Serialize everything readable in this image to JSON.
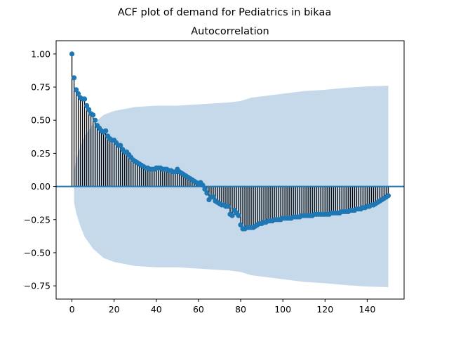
{
  "chart_data": {
    "type": "stem",
    "suptitle": "ACF plot of demand for Pediatrics in bikaa",
    "title": "Autocorrelation",
    "xlabel": "",
    "ylabel": "",
    "xlim": [
      -7.5,
      157.5
    ],
    "ylim": [
      -0.85,
      1.1
    ],
    "xticks": [
      0,
      20,
      40,
      60,
      80,
      100,
      120,
      140
    ],
    "xtick_labels": [
      "0",
      "20",
      "40",
      "60",
      "80",
      "100",
      "120",
      "140"
    ],
    "yticks": [
      -0.75,
      -0.5,
      -0.25,
      0.0,
      0.25,
      0.5,
      0.75,
      1.0
    ],
    "ytick_labels": [
      "−0.75",
      "−0.50",
      "−0.25",
      "0.00",
      "0.25",
      "0.50",
      "0.75",
      "1.00"
    ],
    "colors": {
      "marker": "#1f77b4",
      "stem": "#000000",
      "band": "#c5d9ea",
      "baseline": "#1f77b4"
    },
    "lags": [
      0,
      1,
      2,
      3,
      4,
      5,
      6,
      7,
      8,
      9,
      10,
      11,
      12,
      13,
      14,
      15,
      16,
      17,
      18,
      19,
      20,
      21,
      22,
      23,
      24,
      25,
      26,
      27,
      28,
      29,
      30,
      31,
      32,
      33,
      34,
      35,
      36,
      37,
      38,
      39,
      40,
      41,
      42,
      43,
      44,
      45,
      46,
      47,
      48,
      49,
      50,
      51,
      52,
      53,
      54,
      55,
      56,
      57,
      58,
      59,
      60,
      61,
      62,
      63,
      64,
      65,
      66,
      67,
      68,
      69,
      70,
      71,
      72,
      73,
      74,
      75,
      76,
      77,
      78,
      79,
      80,
      81,
      82,
      83,
      84,
      85,
      86,
      87,
      88,
      89,
      90,
      91,
      92,
      93,
      94,
      95,
      96,
      97,
      98,
      99,
      100,
      101,
      102,
      103,
      104,
      105,
      106,
      107,
      108,
      109,
      110,
      111,
      112,
      113,
      114,
      115,
      116,
      117,
      118,
      119,
      120,
      121,
      122,
      123,
      124,
      125,
      126,
      127,
      128,
      129,
      130,
      131,
      132,
      133,
      134,
      135,
      136,
      137,
      138,
      139,
      140,
      141,
      142,
      143,
      144,
      145,
      146,
      147,
      148,
      149,
      150
    ],
    "acf": [
      1.0,
      0.82,
      0.73,
      0.7,
      0.67,
      0.66,
      0.66,
      0.61,
      0.58,
      0.55,
      0.54,
      0.5,
      0.46,
      0.44,
      0.42,
      0.41,
      0.42,
      0.38,
      0.36,
      0.35,
      0.35,
      0.33,
      0.31,
      0.31,
      0.28,
      0.26,
      0.26,
      0.24,
      0.22,
      0.2,
      0.19,
      0.18,
      0.17,
      0.16,
      0.15,
      0.14,
      0.14,
      0.13,
      0.13,
      0.13,
      0.14,
      0.14,
      0.14,
      0.13,
      0.13,
      0.13,
      0.12,
      0.12,
      0.11,
      0.11,
      0.13,
      0.11,
      0.1,
      0.09,
      0.08,
      0.07,
      0.06,
      0.05,
      0.04,
      0.03,
      0.02,
      0.03,
      0.01,
      -0.02,
      -0.05,
      -0.1,
      -0.08,
      -0.08,
      -0.11,
      -0.12,
      -0.13,
      -0.14,
      -0.14,
      -0.15,
      -0.15,
      -0.21,
      -0.22,
      -0.18,
      -0.2,
      -0.22,
      -0.29,
      -0.32,
      -0.32,
      -0.31,
      -0.31,
      -0.31,
      -0.31,
      -0.3,
      -0.29,
      -0.28,
      -0.28,
      -0.27,
      -0.27,
      -0.26,
      -0.26,
      -0.26,
      -0.25,
      -0.25,
      -0.25,
      -0.25,
      -0.24,
      -0.24,
      -0.24,
      -0.24,
      -0.24,
      -0.23,
      -0.23,
      -0.23,
      -0.23,
      -0.22,
      -0.22,
      -0.22,
      -0.22,
      -0.22,
      -0.22,
      -0.21,
      -0.21,
      -0.21,
      -0.21,
      -0.21,
      -0.21,
      -0.21,
      -0.21,
      -0.2,
      -0.2,
      -0.2,
      -0.2,
      -0.2,
      -0.19,
      -0.19,
      -0.19,
      -0.19,
      -0.18,
      -0.18,
      -0.18,
      -0.17,
      -0.17,
      -0.17,
      -0.16,
      -0.16,
      -0.15,
      -0.15,
      -0.14,
      -0.14,
      -0.13,
      -0.12,
      -0.11,
      -0.1,
      -0.09,
      -0.08,
      -0.07,
      -0.05,
      -0.03
    ],
    "confidence_band": {
      "lags": [
        1,
        2,
        4,
        6,
        10,
        15,
        20,
        30,
        40,
        50,
        60,
        70,
        75,
        80,
        85,
        90,
        100,
        110,
        120,
        130,
        140,
        150
      ],
      "upper": [
        0.12,
        0.2,
        0.3,
        0.38,
        0.47,
        0.54,
        0.57,
        0.6,
        0.61,
        0.61,
        0.62,
        0.63,
        0.635,
        0.645,
        0.67,
        0.68,
        0.7,
        0.72,
        0.73,
        0.745,
        0.755,
        0.76
      ],
      "lower": [
        -0.12,
        -0.2,
        -0.3,
        -0.38,
        -0.47,
        -0.54,
        -0.57,
        -0.6,
        -0.61,
        -0.61,
        -0.62,
        -0.63,
        -0.635,
        -0.645,
        -0.67,
        -0.68,
        -0.7,
        -0.72,
        -0.73,
        -0.745,
        -0.755,
        -0.76
      ]
    }
  }
}
